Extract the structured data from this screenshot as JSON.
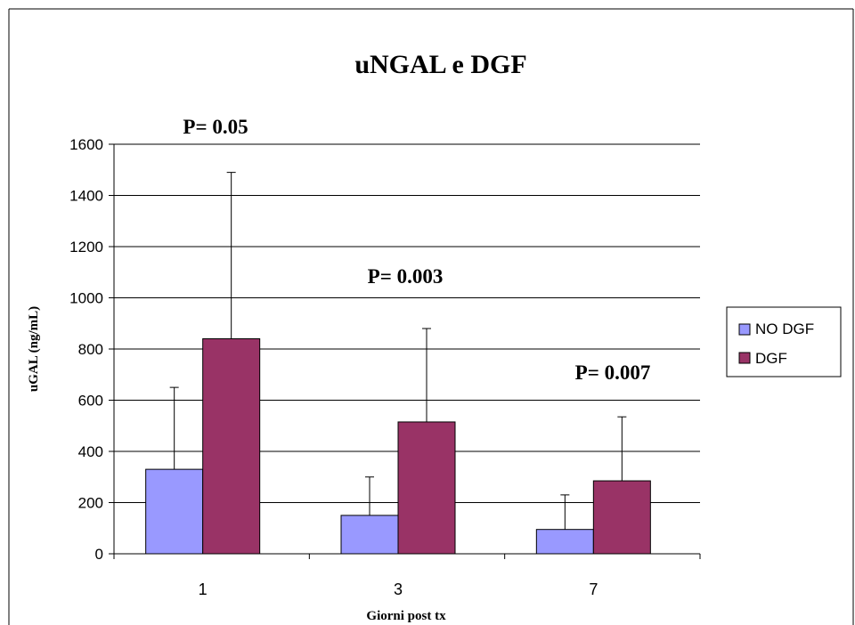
{
  "chart_data": {
    "type": "bar",
    "title": "uNGAL e DGF",
    "xlabel": "Giorni post tx",
    "ylabel": "uGAL (ng/mL)",
    "categories": [
      "1",
      "3",
      "7"
    ],
    "ylim": [
      0,
      1600
    ],
    "yticks": [
      0,
      200,
      400,
      600,
      800,
      1000,
      1200,
      1400,
      1600
    ],
    "grid": true,
    "legend_position": "right",
    "series": [
      {
        "name": "NO DGF",
        "color": "#9999ff",
        "values": [
          330,
          150,
          95
        ],
        "error_upper": [
          650,
          300,
          230
        ]
      },
      {
        "name": "DGF",
        "color": "#993366",
        "values": [
          840,
          515,
          285
        ],
        "error_upper": [
          1490,
          880,
          535
        ]
      }
    ],
    "annotations": [
      "P= 0.05",
      "P= 0.003",
      "P= 0.007"
    ]
  }
}
